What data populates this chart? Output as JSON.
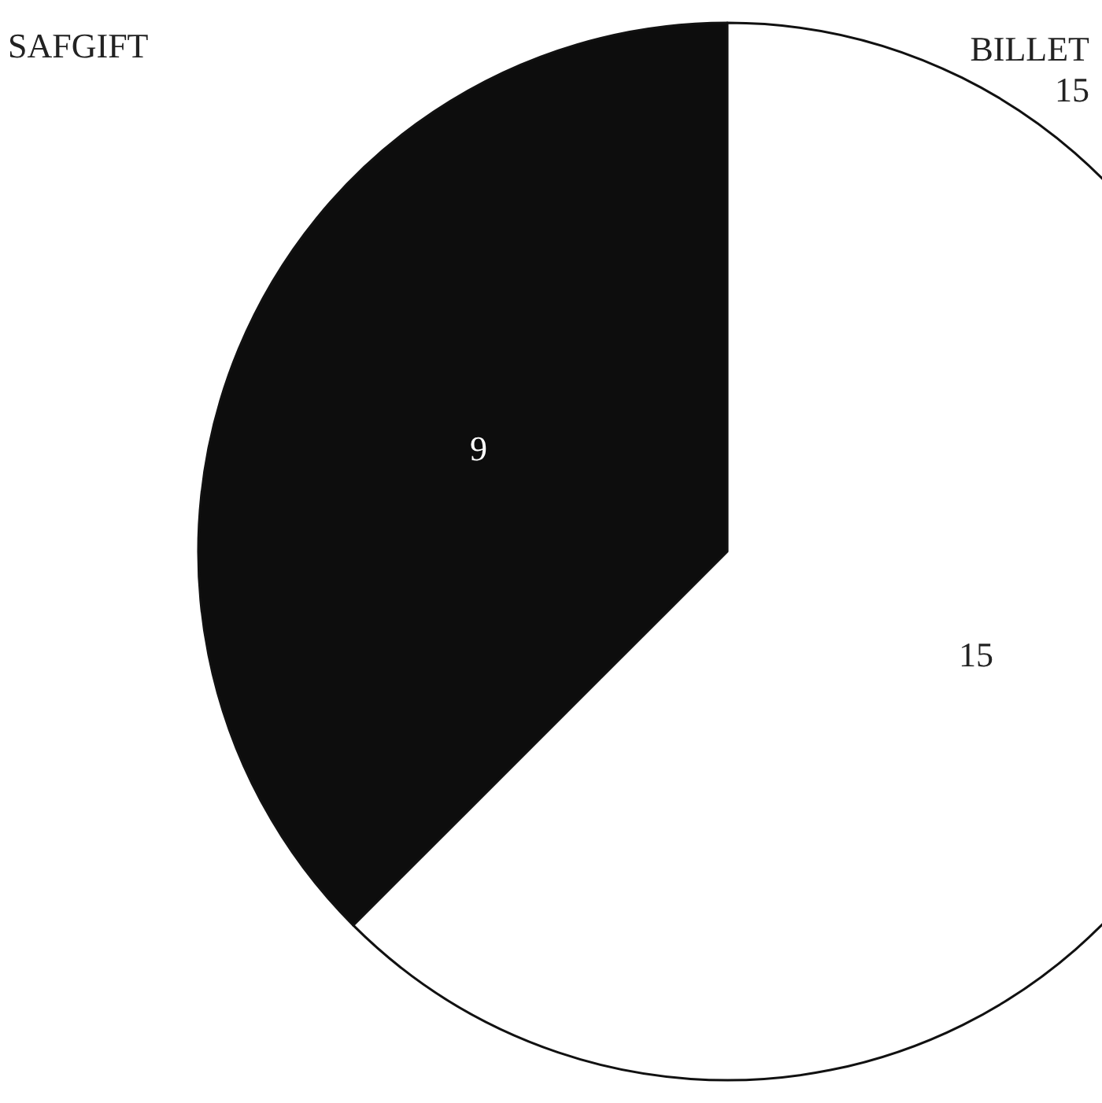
{
  "chart_data": {
    "type": "pie",
    "categories": [
      null,
      null
    ],
    "values": [
      9,
      15
    ],
    "colors": [
      "#0d0d0d",
      "#ffffff"
    ],
    "data_labels": true,
    "annotations": [
      "SAFGIFT",
      "BILLET",
      "15"
    ]
  }
}
